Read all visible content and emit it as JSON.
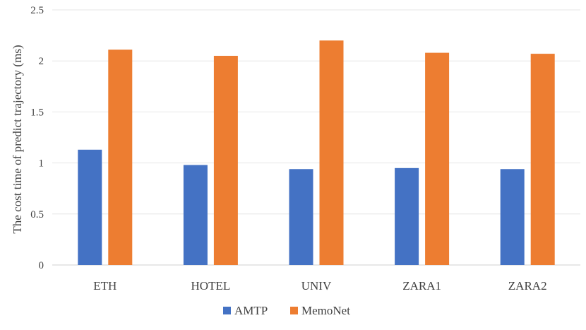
{
  "chart_data": {
    "type": "bar",
    "categories": [
      "ETH",
      "HOTEL",
      "UNIV",
      "ZARA1",
      "ZARA2"
    ],
    "series": [
      {
        "name": "AMTP",
        "values": [
          1.13,
          0.98,
          0.94,
          0.95,
          0.94
        ],
        "color": "#4472C4"
      },
      {
        "name": "MemoNet",
        "values": [
          2.11,
          2.05,
          2.2,
          2.08,
          2.07
        ],
        "color": "#ED7D31"
      }
    ],
    "title": "",
    "xlabel": "",
    "ylabel": "The cost time of predict trajectory (ms)",
    "ylim": [
      0,
      2.5
    ],
    "yticks": [
      "0",
      "0.5",
      "1",
      "1.5",
      "2",
      "2.5"
    ],
    "grid": true,
    "legend_position": "bottom"
  }
}
